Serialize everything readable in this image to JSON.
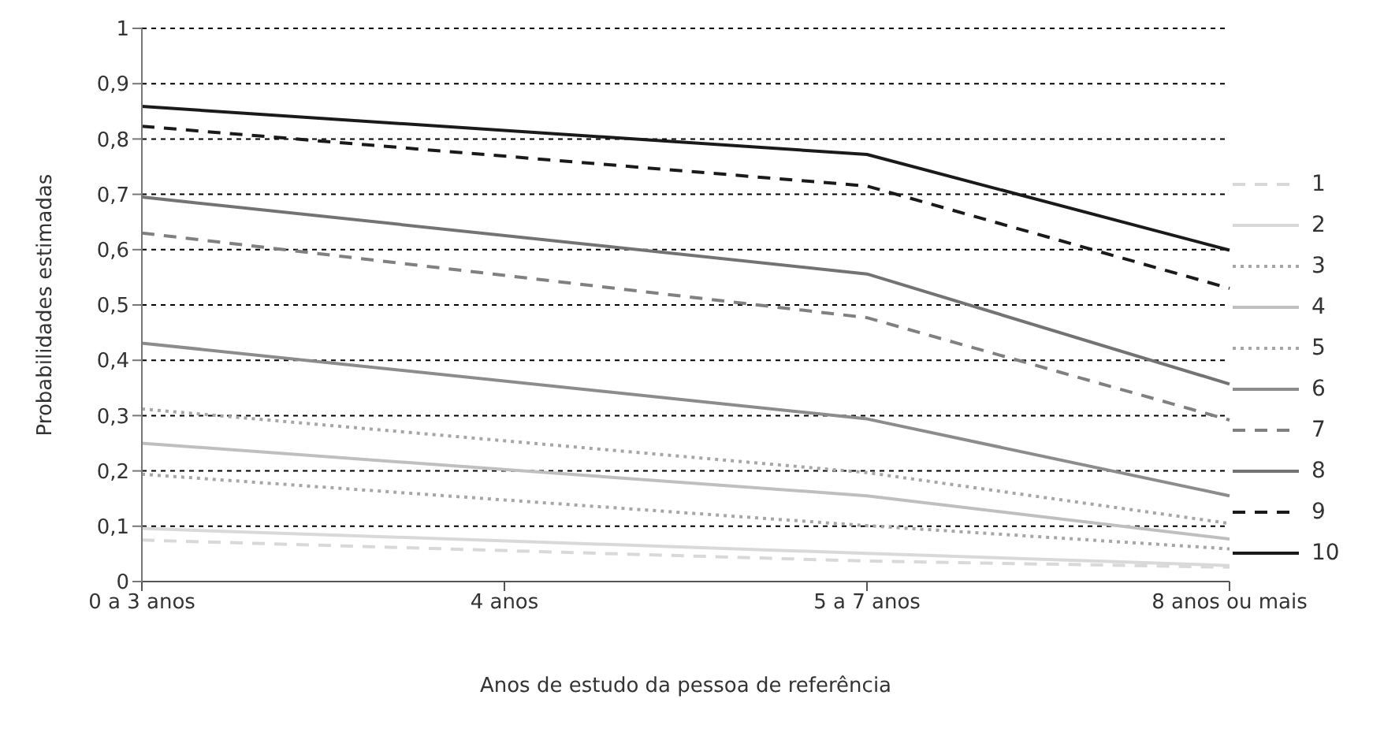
{
  "chart_data": {
    "type": "line",
    "xlabel": "Anos de estudo da pessoa de referência",
    "ylabel": "Probabilidades estimadas",
    "categories": [
      "0 a 3 anos",
      "4 anos",
      "5 a 7 anos",
      "8 anos ou mais"
    ],
    "ylim": [
      0,
      1
    ],
    "yticks": [
      {
        "value": 0,
        "label": "0"
      },
      {
        "value": 0.1,
        "label": "0,1"
      },
      {
        "value": 0.2,
        "label": "0,2"
      },
      {
        "value": 0.3,
        "label": "0,3"
      },
      {
        "value": 0.4,
        "label": "0,4"
      },
      {
        "value": 0.5,
        "label": "0,5"
      },
      {
        "value": 0.6,
        "label": "0,6"
      },
      {
        "value": 0.7,
        "label": "0,7"
      },
      {
        "value": 0.8,
        "label": "0,8"
      },
      {
        "value": 0.9,
        "label": "0,9"
      },
      {
        "value": 1,
        "label": "1"
      }
    ],
    "grid": "y",
    "legend": "right",
    "marker": "none",
    "series": [
      {
        "name": "1",
        "color": "#d9d9d9",
        "line_style": "dashed",
        "values": [
          0.075,
          null,
          0.037,
          0.026
        ]
      },
      {
        "name": "2",
        "color": "#d9d9d9",
        "line_style": "solid",
        "values": [
          0.096,
          null,
          0.051,
          0.029
        ]
      },
      {
        "name": "3",
        "color": "#a6a6a6",
        "line_style": "dotted",
        "values": [
          0.194,
          null,
          0.101,
          0.059
        ]
      },
      {
        "name": "4",
        "color": "#bfbfbf",
        "line_style": "solid",
        "values": [
          0.25,
          null,
          0.155,
          0.077
        ]
      },
      {
        "name": "5",
        "color": "#a6a6a6",
        "line_style": "dotted",
        "values": [
          0.312,
          null,
          0.197,
          0.105
        ]
      },
      {
        "name": "6",
        "color": "#8c8c8c",
        "line_style": "solid",
        "values": [
          0.431,
          null,
          0.294,
          0.155
        ]
      },
      {
        "name": "7",
        "color": "#808080",
        "line_style": "dashed",
        "values": [
          0.63,
          null,
          0.477,
          0.292
        ]
      },
      {
        "name": "8",
        "color": "#737373",
        "line_style": "solid",
        "values": [
          0.695,
          null,
          0.556,
          0.357
        ]
      },
      {
        "name": "9",
        "color": "#1a1a1a",
        "line_style": "dashed",
        "values": [
          0.823,
          null,
          0.715,
          0.53
        ]
      },
      {
        "name": "10",
        "color": "#1a1a1a",
        "line_style": "solid",
        "values": [
          0.859,
          null,
          0.772,
          0.599
        ]
      }
    ]
  }
}
